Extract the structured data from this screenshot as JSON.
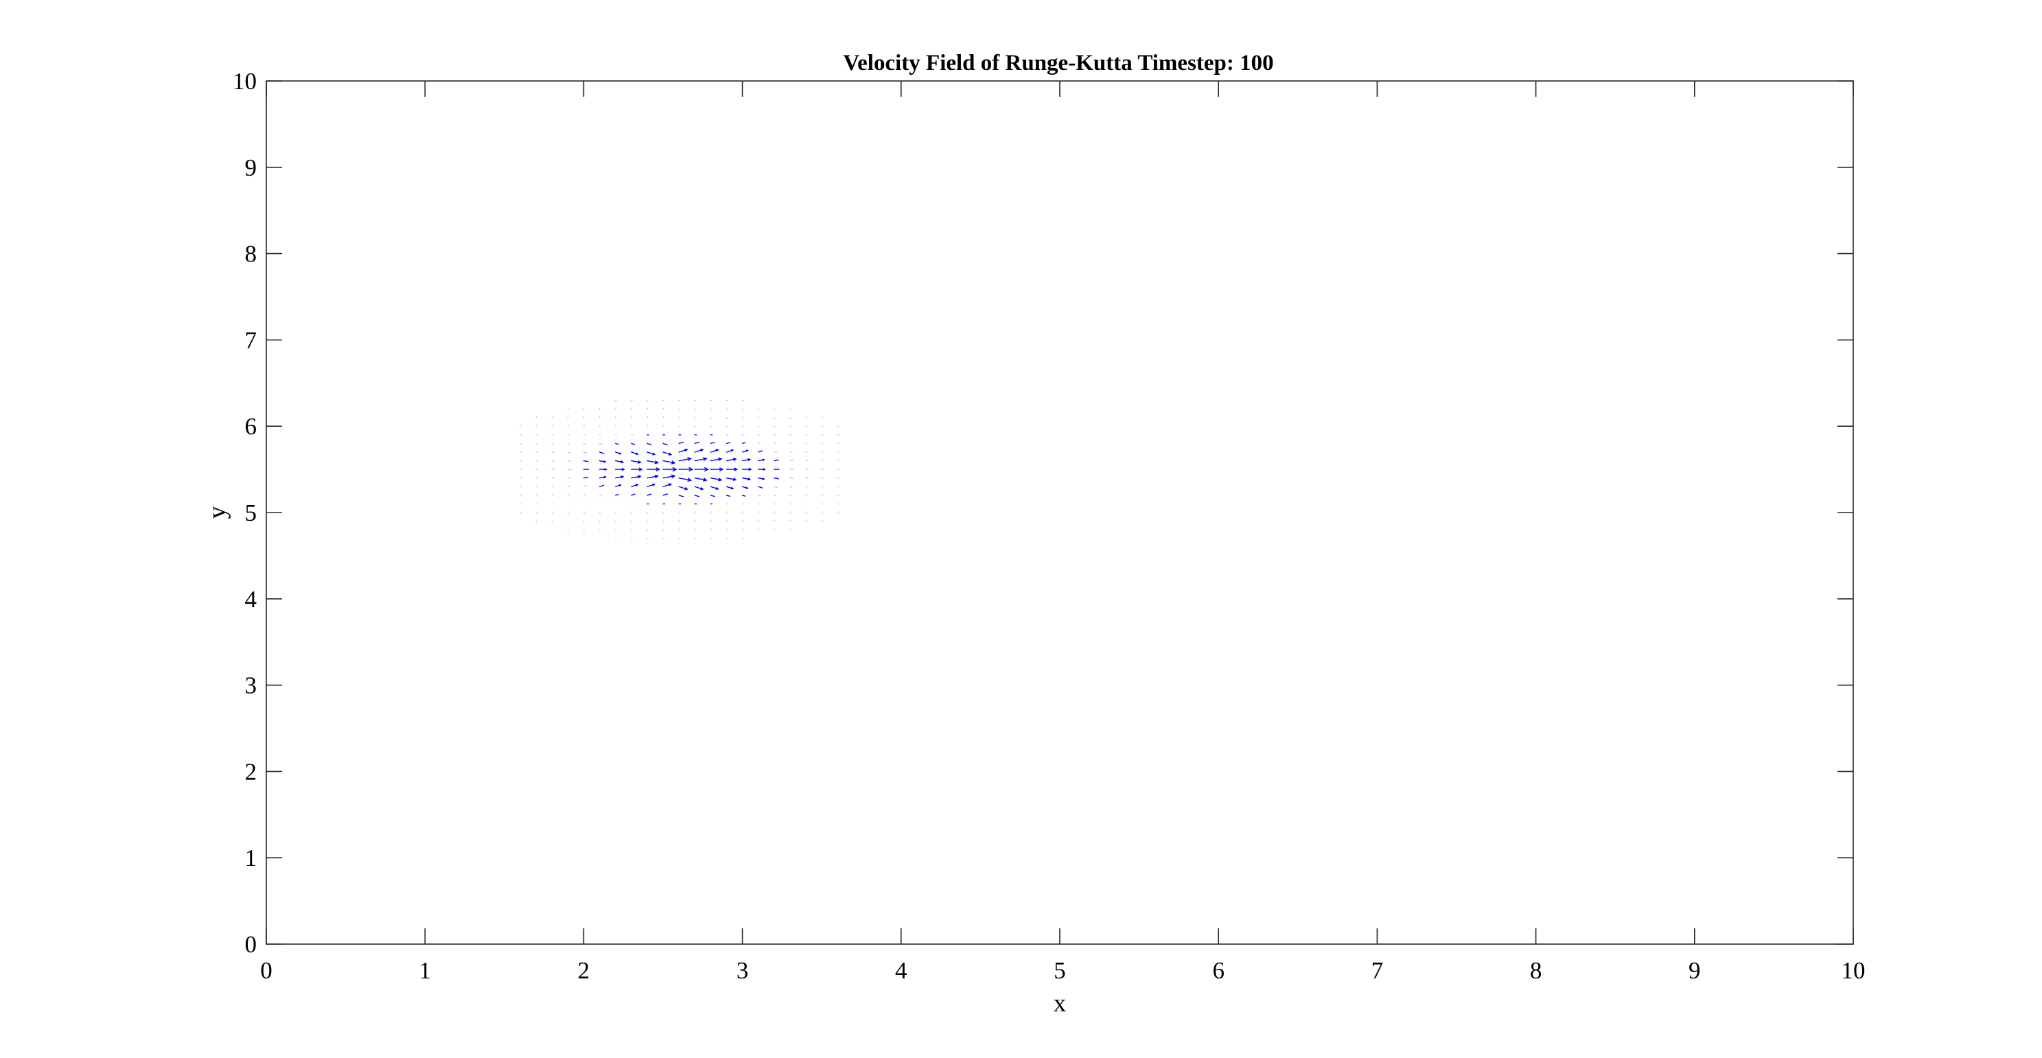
{
  "chart_data": {
    "type": "quiver",
    "title": "Velocity Field of Runge-Kutta Timestep: 100",
    "xlabel": "x",
    "ylabel": "y",
    "xlim": [
      0,
      10
    ],
    "ylim": [
      0,
      10
    ],
    "xticks": [
      "0",
      "1",
      "2",
      "3",
      "4",
      "5",
      "6",
      "7",
      "8",
      "9",
      "10"
    ],
    "yticks": [
      "0",
      "1",
      "2",
      "3",
      "4",
      "5",
      "6",
      "7",
      "8",
      "9",
      "10"
    ],
    "grid": false,
    "legend": "none",
    "arrow_color": "#0000ff",
    "faint_arrow_color": "#b8b8b8",
    "axis_color": "#262626",
    "field": {
      "description_type": "vortex-blob",
      "center": [
        2.6,
        5.5
      ],
      "x_range": [
        1.6,
        3.6
      ],
      "y_range": [
        4.7,
        6.5
      ],
      "grid_step": 0.1,
      "sigma_x": 0.42,
      "sigma_y": 0.28,
      "peak_speed": 0.85
    }
  }
}
